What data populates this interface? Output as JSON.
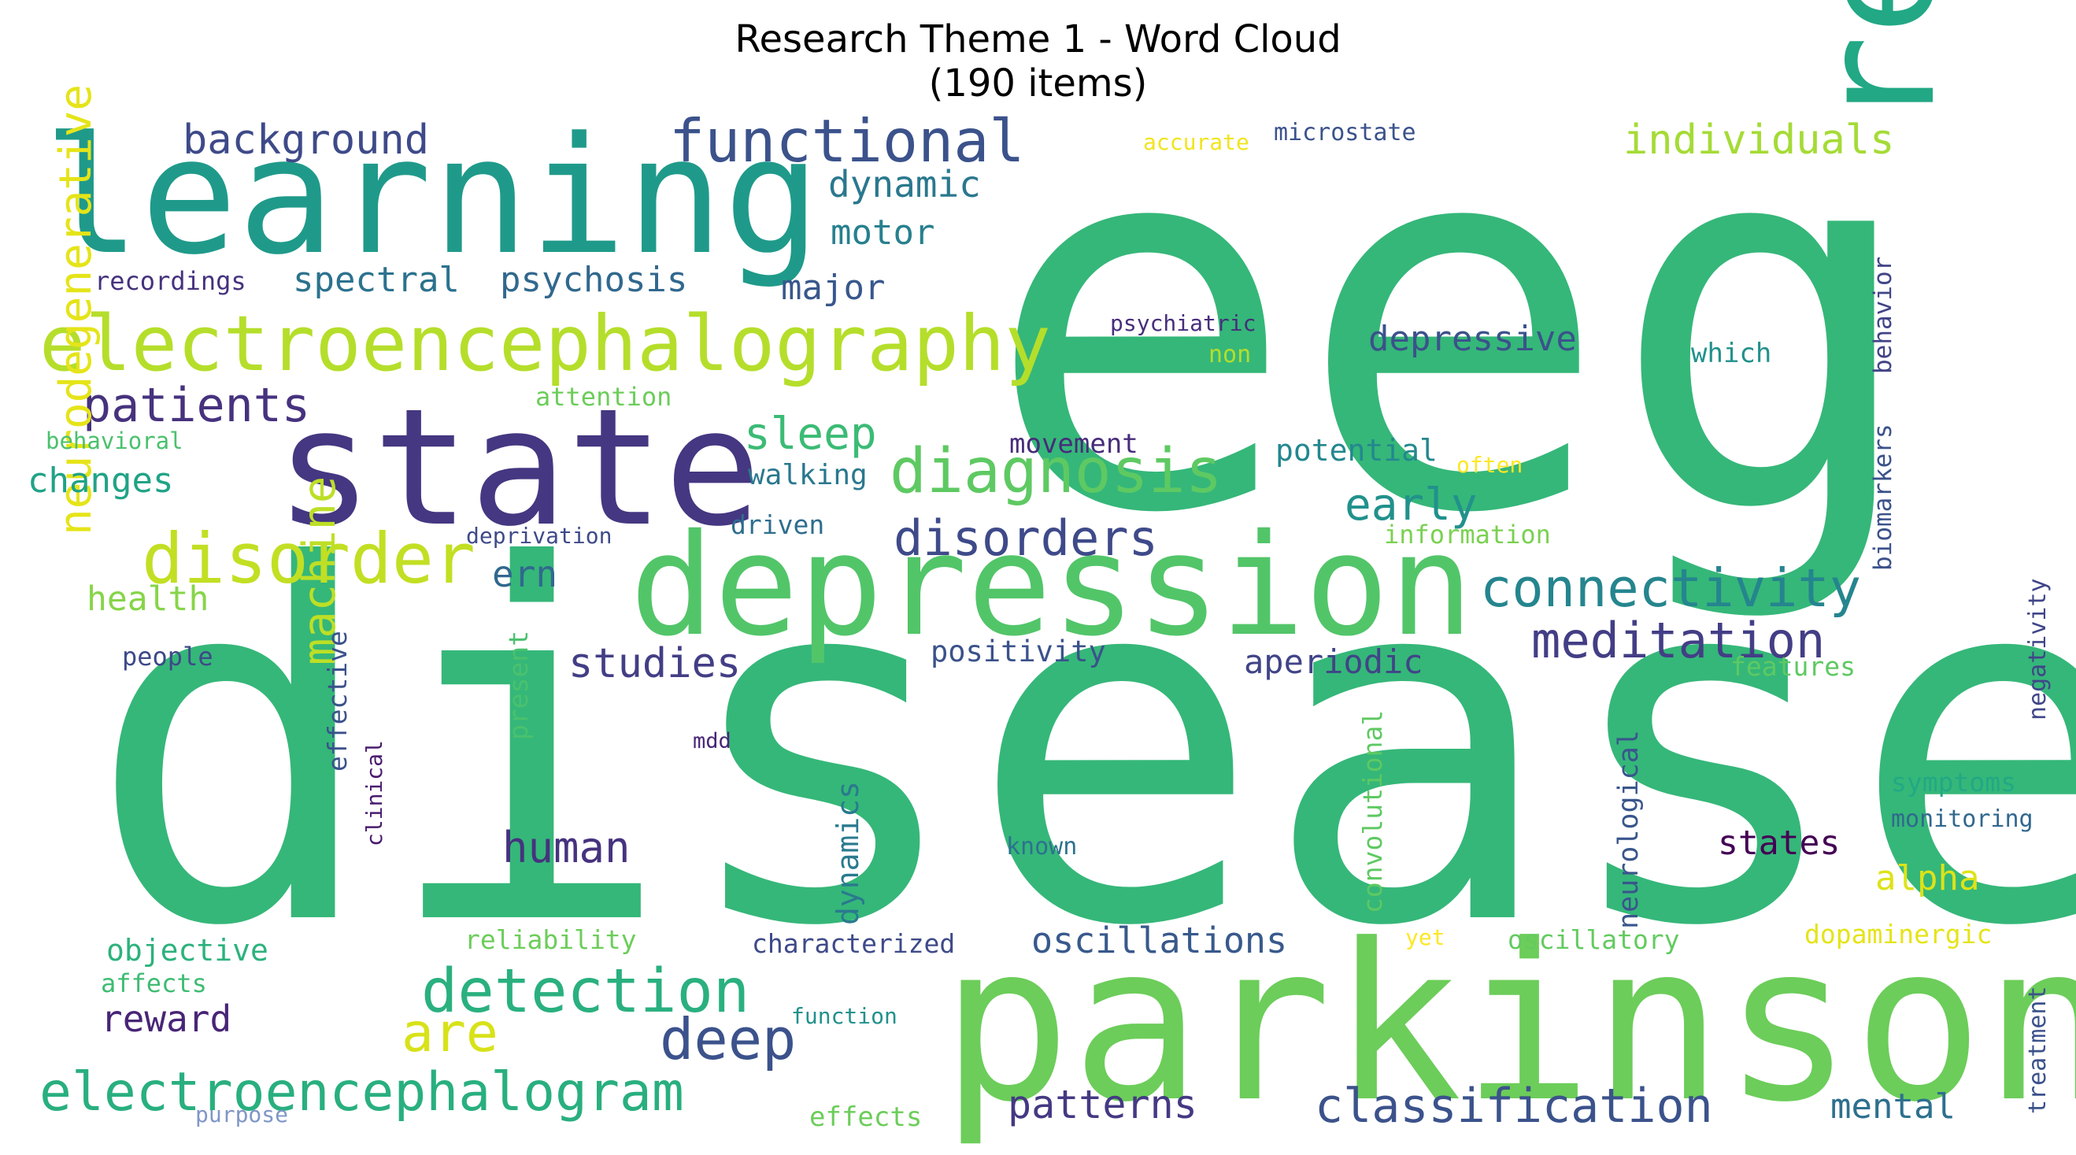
{
  "title": "Research Theme 1 - Word Cloud",
  "subtitle": "(190 items)",
  "words": [
    {
      "text": "eeg",
      "color": "#35b779"
    },
    {
      "text": "disease",
      "color": "#35b779"
    },
    {
      "text": "parkinson",
      "color": "#6ccd5a"
    },
    {
      "text": "learning",
      "color": "#1f9a8a"
    },
    {
      "text": "state",
      "color": "#453781"
    },
    {
      "text": "depression",
      "color": "#52c569"
    },
    {
      "text": "resting",
      "color": "#22a884"
    },
    {
      "text": "electroencephalography",
      "color": "#b5de2b"
    },
    {
      "text": "diagnosis",
      "color": "#5ec962"
    },
    {
      "text": "disorder",
      "color": "#c2df23"
    },
    {
      "text": "functional",
      "color": "#3b528b"
    },
    {
      "text": "connectivity",
      "color": "#25858e"
    },
    {
      "text": "electroencephalogram",
      "color": "#29af7f"
    },
    {
      "text": "detection",
      "color": "#2ab07f"
    },
    {
      "text": "disorders",
      "color": "#3e4a89"
    },
    {
      "text": "meditation",
      "color": "#433e85"
    },
    {
      "text": "classification",
      "color": "#3b528b"
    },
    {
      "text": "patients",
      "color": "#46327e"
    },
    {
      "text": "deep",
      "color": "#3b528b"
    },
    {
      "text": "neurodegenerative",
      "color": "#e5e419"
    },
    {
      "text": "machine",
      "color": "#bddf26"
    },
    {
      "text": "background",
      "color": "#3e4a89"
    },
    {
      "text": "individuals",
      "color": "#a5db36"
    },
    {
      "text": "dynamic",
      "color": "#2a788e"
    },
    {
      "text": "motor",
      "color": "#27808e"
    },
    {
      "text": "spectral",
      "color": "#2c728e"
    },
    {
      "text": "psychosis",
      "color": "#31688e"
    },
    {
      "text": "major",
      "color": "#38588c"
    },
    {
      "text": "depressive",
      "color": "#3b528b"
    },
    {
      "text": "sleep",
      "color": "#3bbb75"
    },
    {
      "text": "early",
      "color": "#21918c"
    },
    {
      "text": "changes",
      "color": "#20a386"
    },
    {
      "text": "health",
      "color": "#86d549"
    },
    {
      "text": "ern",
      "color": "#31688e"
    },
    {
      "text": "studies",
      "color": "#433e85"
    },
    {
      "text": "aperiodic",
      "color": "#414487"
    },
    {
      "text": "human",
      "color": "#46327e"
    },
    {
      "text": "are",
      "color": "#d8e219"
    },
    {
      "text": "oscillations",
      "color": "#38598c"
    },
    {
      "text": "patterns",
      "color": "#443983"
    },
    {
      "text": "states",
      "color": "#440154"
    },
    {
      "text": "alpha",
      "color": "#dde318"
    },
    {
      "text": "mental",
      "color": "#2d708e"
    },
    {
      "text": "reward",
      "color": "#482576"
    },
    {
      "text": "objective",
      "color": "#2db27d"
    },
    {
      "text": "potential",
      "color": "#23888e"
    },
    {
      "text": "walking",
      "color": "#2a788e"
    },
    {
      "text": "movement",
      "color": "#472c7a"
    },
    {
      "text": "positivity",
      "color": "#3b528b"
    },
    {
      "text": "information",
      "color": "#7ad151"
    },
    {
      "text": "recordings",
      "color": "#46327e"
    },
    {
      "text": "attention",
      "color": "#6ccd5a"
    },
    {
      "text": "behavioral",
      "color": "#4ac16d"
    },
    {
      "text": "deprivation",
      "color": "#3e4a89"
    },
    {
      "text": "driven",
      "color": "#2e6e8e"
    },
    {
      "text": "people",
      "color": "#3e4989"
    },
    {
      "text": "effective",
      "color": "#3b528b"
    },
    {
      "text": "clinical",
      "color": "#481b6d"
    },
    {
      "text": "present",
      "color": "#4ac16d"
    },
    {
      "text": "mdd",
      "color": "#482677"
    },
    {
      "text": "dynamics",
      "color": "#297a8e"
    },
    {
      "text": "convolutional",
      "color": "#5ec962"
    },
    {
      "text": "neurological",
      "color": "#39568c"
    },
    {
      "text": "known",
      "color": "#2c728e"
    },
    {
      "text": "function",
      "color": "#21918c"
    },
    {
      "text": "characterized",
      "color": "#3e4a89"
    },
    {
      "text": "reliability",
      "color": "#6ccd5a"
    },
    {
      "text": "affects",
      "color": "#3fbc73"
    },
    {
      "text": "purpose",
      "color": "#7f96c6"
    },
    {
      "text": "effects",
      "color": "#6ccd5a"
    },
    {
      "text": "yet",
      "color": "#fde725"
    },
    {
      "text": "oscillatory",
      "color": "#63cb5f"
    },
    {
      "text": "dopaminergic",
      "color": "#e5e419"
    },
    {
      "text": "treatment",
      "color": "#3b528b"
    },
    {
      "text": "monitoring",
      "color": "#31688e"
    },
    {
      "text": "symptoms",
      "color": "#22a884"
    },
    {
      "text": "features",
      "color": "#5ec962"
    },
    {
      "text": "negativity",
      "color": "#404688"
    },
    {
      "text": "biomarkers",
      "color": "#3b528b"
    },
    {
      "text": "behavior",
      "color": "#414487"
    },
    {
      "text": "which",
      "color": "#21918c"
    },
    {
      "text": "often",
      "color": "#fde725"
    },
    {
      "text": "non",
      "color": "#b5de2b"
    },
    {
      "text": "psychiatric",
      "color": "#472d7b"
    },
    {
      "text": "accurate",
      "color": "#f1e51d"
    },
    {
      "text": "microstate",
      "color": "#3b528b"
    }
  ]
}
